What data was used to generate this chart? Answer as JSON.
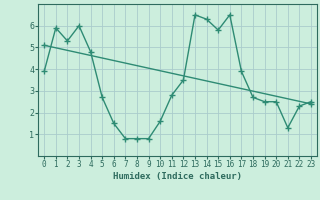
{
  "line1_x": [
    0,
    1,
    2,
    3,
    4,
    5,
    6,
    7,
    8,
    9,
    10,
    11,
    12,
    13,
    14,
    15,
    16,
    17,
    18,
    19,
    20,
    21,
    22,
    23
  ],
  "line1_y": [
    3.9,
    5.9,
    5.3,
    6.0,
    4.8,
    2.7,
    1.5,
    0.8,
    0.8,
    0.8,
    1.6,
    2.8,
    3.5,
    6.5,
    6.3,
    5.8,
    6.5,
    3.9,
    2.7,
    2.5,
    2.5,
    1.3,
    2.3,
    2.5
  ],
  "line2_x": [
    0,
    23
  ],
  "line2_y": [
    5.1,
    2.4
  ],
  "line_color": "#2e8b74",
  "bg_color": "#cceedd",
  "grid_color": "#aacccc",
  "xlabel": "Humidex (Indice chaleur)",
  "xlim": [
    -0.5,
    23.5
  ],
  "ylim": [
    0,
    7
  ],
  "yticks": [
    1,
    2,
    3,
    4,
    5,
    6
  ],
  "xticks": [
    0,
    1,
    2,
    3,
    4,
    5,
    6,
    7,
    8,
    9,
    10,
    11,
    12,
    13,
    14,
    15,
    16,
    17,
    18,
    19,
    20,
    21,
    22,
    23
  ],
  "marker_size": 4.0,
  "line_width": 1.0,
  "font_color": "#2e6b5e",
  "tick_fontsize": 5.5,
  "xlabel_fontsize": 6.5
}
